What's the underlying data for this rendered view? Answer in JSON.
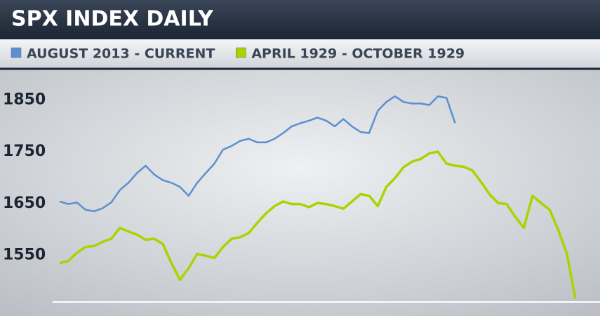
{
  "chart_data": {
    "type": "line",
    "title": "SPX INDEX DAILY",
    "series": [
      {
        "name": "AUGUST 2013 - CURRENT",
        "color": "#5b8fd0",
        "values": [
          1654,
          1649,
          1652,
          1638,
          1635,
          1641,
          1652,
          1676,
          1690,
          1709,
          1723,
          1706,
          1695,
          1690,
          1682,
          1665,
          1690,
          1709,
          1727,
          1754,
          1761,
          1771,
          1775,
          1768,
          1768,
          1775,
          1786,
          1799,
          1805,
          1810,
          1816,
          1810,
          1799,
          1813,
          1799,
          1788,
          1786,
          1829,
          1846,
          1857,
          1846,
          1843,
          1843,
          1840,
          1857,
          1854,
          1805
        ]
      },
      {
        "name": "APRIL 1929 - OCTOBER 1929",
        "color": "#a8d400",
        "values": [
          1535,
          1539,
          1555,
          1566,
          1568,
          1576,
          1582,
          1603,
          1596,
          1590,
          1580,
          1582,
          1572,
          1535,
          1503,
          1525,
          1553,
          1549,
          1545,
          1566,
          1582,
          1585,
          1593,
          1613,
          1631,
          1645,
          1654,
          1649,
          1649,
          1643,
          1651,
          1649,
          1645,
          1640,
          1654,
          1668,
          1665,
          1645,
          1682,
          1699,
          1720,
          1731,
          1736,
          1747,
          1750,
          1727,
          1723,
          1721,
          1714,
          1692,
          1668,
          1651,
          1649,
          1624,
          1603,
          1665,
          1651,
          1638,
          1599,
          1553,
          1466
        ]
      }
    ],
    "ylim": [
      1460,
      1910
    ],
    "yticks": [
      1550,
      1650,
      1750,
      1850
    ]
  }
}
